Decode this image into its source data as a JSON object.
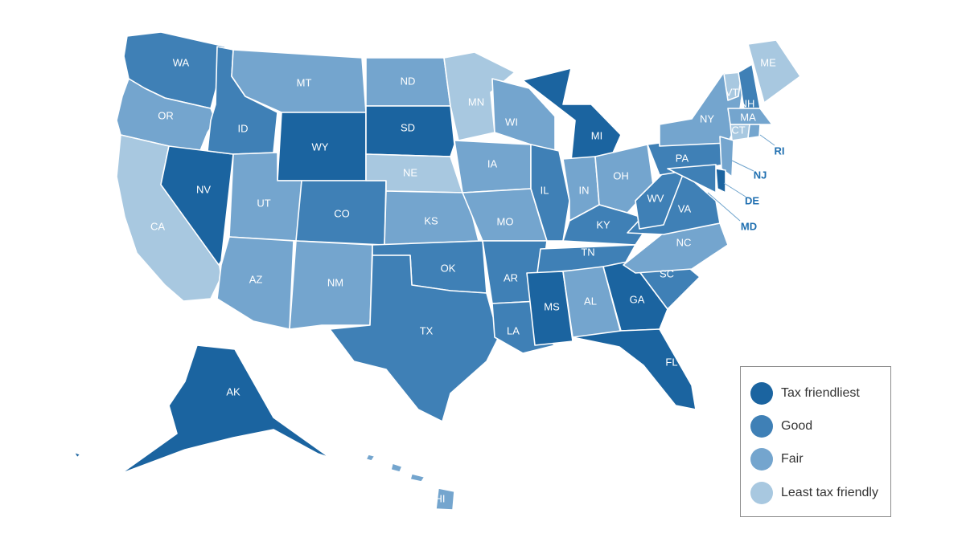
{
  "palette": {
    "tax_friendliest": "#1b64a0",
    "good": "#3f80b6",
    "fair": "#74a5ce",
    "least": "#a8c8e0"
  },
  "legend": {
    "items": [
      {
        "key": "tax_friendliest",
        "label": "Tax friendliest"
      },
      {
        "key": "good",
        "label": "Good"
      },
      {
        "key": "fair",
        "label": "Fair"
      },
      {
        "key": "least",
        "label": "Least tax friendly"
      }
    ]
  },
  "states": {
    "WA": {
      "label": "WA",
      "rating": "good"
    },
    "OR": {
      "label": "OR",
      "rating": "fair"
    },
    "CA": {
      "label": "CA",
      "rating": "least"
    },
    "NV": {
      "label": "NV",
      "rating": "tax_friendliest"
    },
    "ID": {
      "label": "ID",
      "rating": "good"
    },
    "MT": {
      "label": "MT",
      "rating": "fair"
    },
    "WY": {
      "label": "WY",
      "rating": "tax_friendliest"
    },
    "UT": {
      "label": "UT",
      "rating": "fair"
    },
    "AZ": {
      "label": "AZ",
      "rating": "fair"
    },
    "CO": {
      "label": "CO",
      "rating": "good"
    },
    "NM": {
      "label": "NM",
      "rating": "fair"
    },
    "ND": {
      "label": "ND",
      "rating": "fair"
    },
    "SD": {
      "label": "SD",
      "rating": "tax_friendliest"
    },
    "NE": {
      "label": "NE",
      "rating": "least"
    },
    "KS": {
      "label": "KS",
      "rating": "fair"
    },
    "OK": {
      "label": "OK",
      "rating": "good"
    },
    "TX": {
      "label": "TX",
      "rating": "good"
    },
    "MN": {
      "label": "MN",
      "rating": "least"
    },
    "IA": {
      "label": "IA",
      "rating": "fair"
    },
    "MO": {
      "label": "MO",
      "rating": "fair"
    },
    "AR": {
      "label": "AR",
      "rating": "good"
    },
    "LA": {
      "label": "LA",
      "rating": "good"
    },
    "WI": {
      "label": "WI",
      "rating": "fair"
    },
    "IL": {
      "label": "IL",
      "rating": "good"
    },
    "MI": {
      "label": "MI",
      "rating": "tax_friendliest"
    },
    "IN": {
      "label": "IN",
      "rating": "fair"
    },
    "OH": {
      "label": "OH",
      "rating": "fair"
    },
    "KY": {
      "label": "KY",
      "rating": "good"
    },
    "TN": {
      "label": "TN",
      "rating": "good"
    },
    "MS": {
      "label": "MS",
      "rating": "tax_friendliest"
    },
    "AL": {
      "label": "AL",
      "rating": "fair"
    },
    "GA": {
      "label": "GA",
      "rating": "tax_friendliest"
    },
    "FL": {
      "label": "FL",
      "rating": "tax_friendliest"
    },
    "SC": {
      "label": "SC",
      "rating": "good"
    },
    "NC": {
      "label": "NC",
      "rating": "fair"
    },
    "VA": {
      "label": "VA",
      "rating": "good"
    },
    "WV": {
      "label": "WV",
      "rating": "good"
    },
    "PA": {
      "label": "PA",
      "rating": "good"
    },
    "NY": {
      "label": "NY",
      "rating": "fair"
    },
    "VT": {
      "label": "VT",
      "rating": "least"
    },
    "NH": {
      "label": "NH",
      "rating": "good"
    },
    "ME": {
      "label": "ME",
      "rating": "least"
    },
    "MA": {
      "label": "MA",
      "rating": "fair"
    },
    "CT": {
      "label": "CT",
      "rating": "least"
    },
    "RI": {
      "label": "RI",
      "rating": "fair"
    },
    "NJ": {
      "label": "NJ",
      "rating": "fair"
    },
    "DE": {
      "label": "DE",
      "rating": "tax_friendliest"
    },
    "MD": {
      "label": "MD",
      "rating": "good"
    },
    "AK": {
      "label": "AK",
      "rating": "tax_friendliest"
    },
    "HI": {
      "label": "HI",
      "rating": "fair"
    }
  }
}
